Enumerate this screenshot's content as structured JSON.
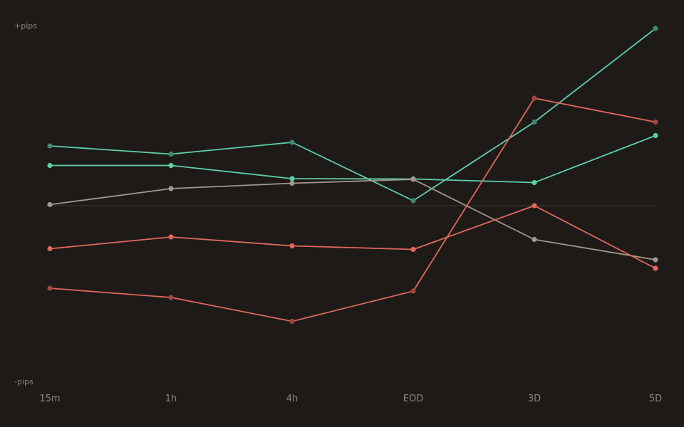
{
  "chart_data": {
    "type": "line",
    "categories": [
      "15m",
      "1h",
      "4h",
      "EOD",
      "3D",
      "5D"
    ],
    "y_top_label": "+pips",
    "y_bottom_label": "-pips",
    "ylim": [
      -100,
      100
    ],
    "baseline": 0,
    "legend": "none",
    "grid": false,
    "series": [
      {
        "values": [
          33.6,
          29.0,
          35.6,
          2.8,
          47.0,
          99.6
        ],
        "color": "#5ecfa9",
        "marker_color": "#3d8a6f"
      },
      {
        "values": [
          22.6,
          22.6,
          15.2,
          15.0,
          13.0,
          39.4
        ],
        "color": "#5ecfa9",
        "marker_color": "#5ecfa9"
      },
      {
        "values": [
          0.6,
          9.6,
          12.6,
          14.8,
          -19.0,
          -30.4
        ],
        "color": "#a09890",
        "marker_color": "#a09890"
      },
      {
        "values": [
          -24.2,
          -17.6,
          -22.6,
          -24.6,
          0.0,
          -35.2
        ],
        "color": "#e0685e",
        "marker_color": "#e0685e"
      },
      {
        "values": [
          -46.4,
          -51.6,
          -65.0,
          -48.0,
          60.4,
          47.0
        ],
        "color": "#e0685e",
        "marker_color": "#9e463f"
      }
    ]
  }
}
